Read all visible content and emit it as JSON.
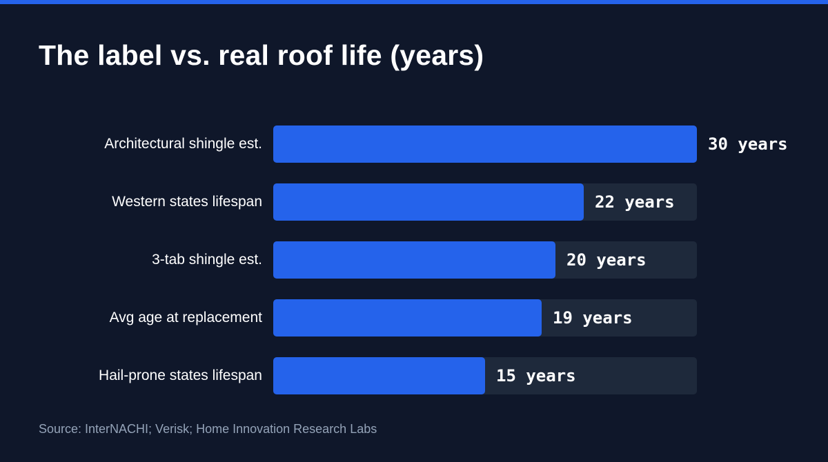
{
  "title": "The label vs. real roof life (years)",
  "source": "Source: InterNACHI; Verisk; Home Innovation Research Labs",
  "colors": {
    "background": "#0f172a",
    "accent": "#2563eb",
    "track": "#1e293b",
    "source_text": "#94a3b8"
  },
  "chart_data": {
    "type": "bar",
    "orientation": "horizontal",
    "title": "The label vs. real roof life (years)",
    "categories": [
      "Architectural shingle est.",
      "Western states lifespan",
      "3-tab shingle est.",
      "Avg age at replacement",
      "Hail-prone states lifespan"
    ],
    "values": [
      30,
      22,
      20,
      19,
      15
    ],
    "value_labels": [
      "30 years",
      "22 years",
      "20 years",
      "19 years",
      "15 years"
    ],
    "xlim": [
      0,
      30
    ],
    "grid": false,
    "legend": "none"
  }
}
